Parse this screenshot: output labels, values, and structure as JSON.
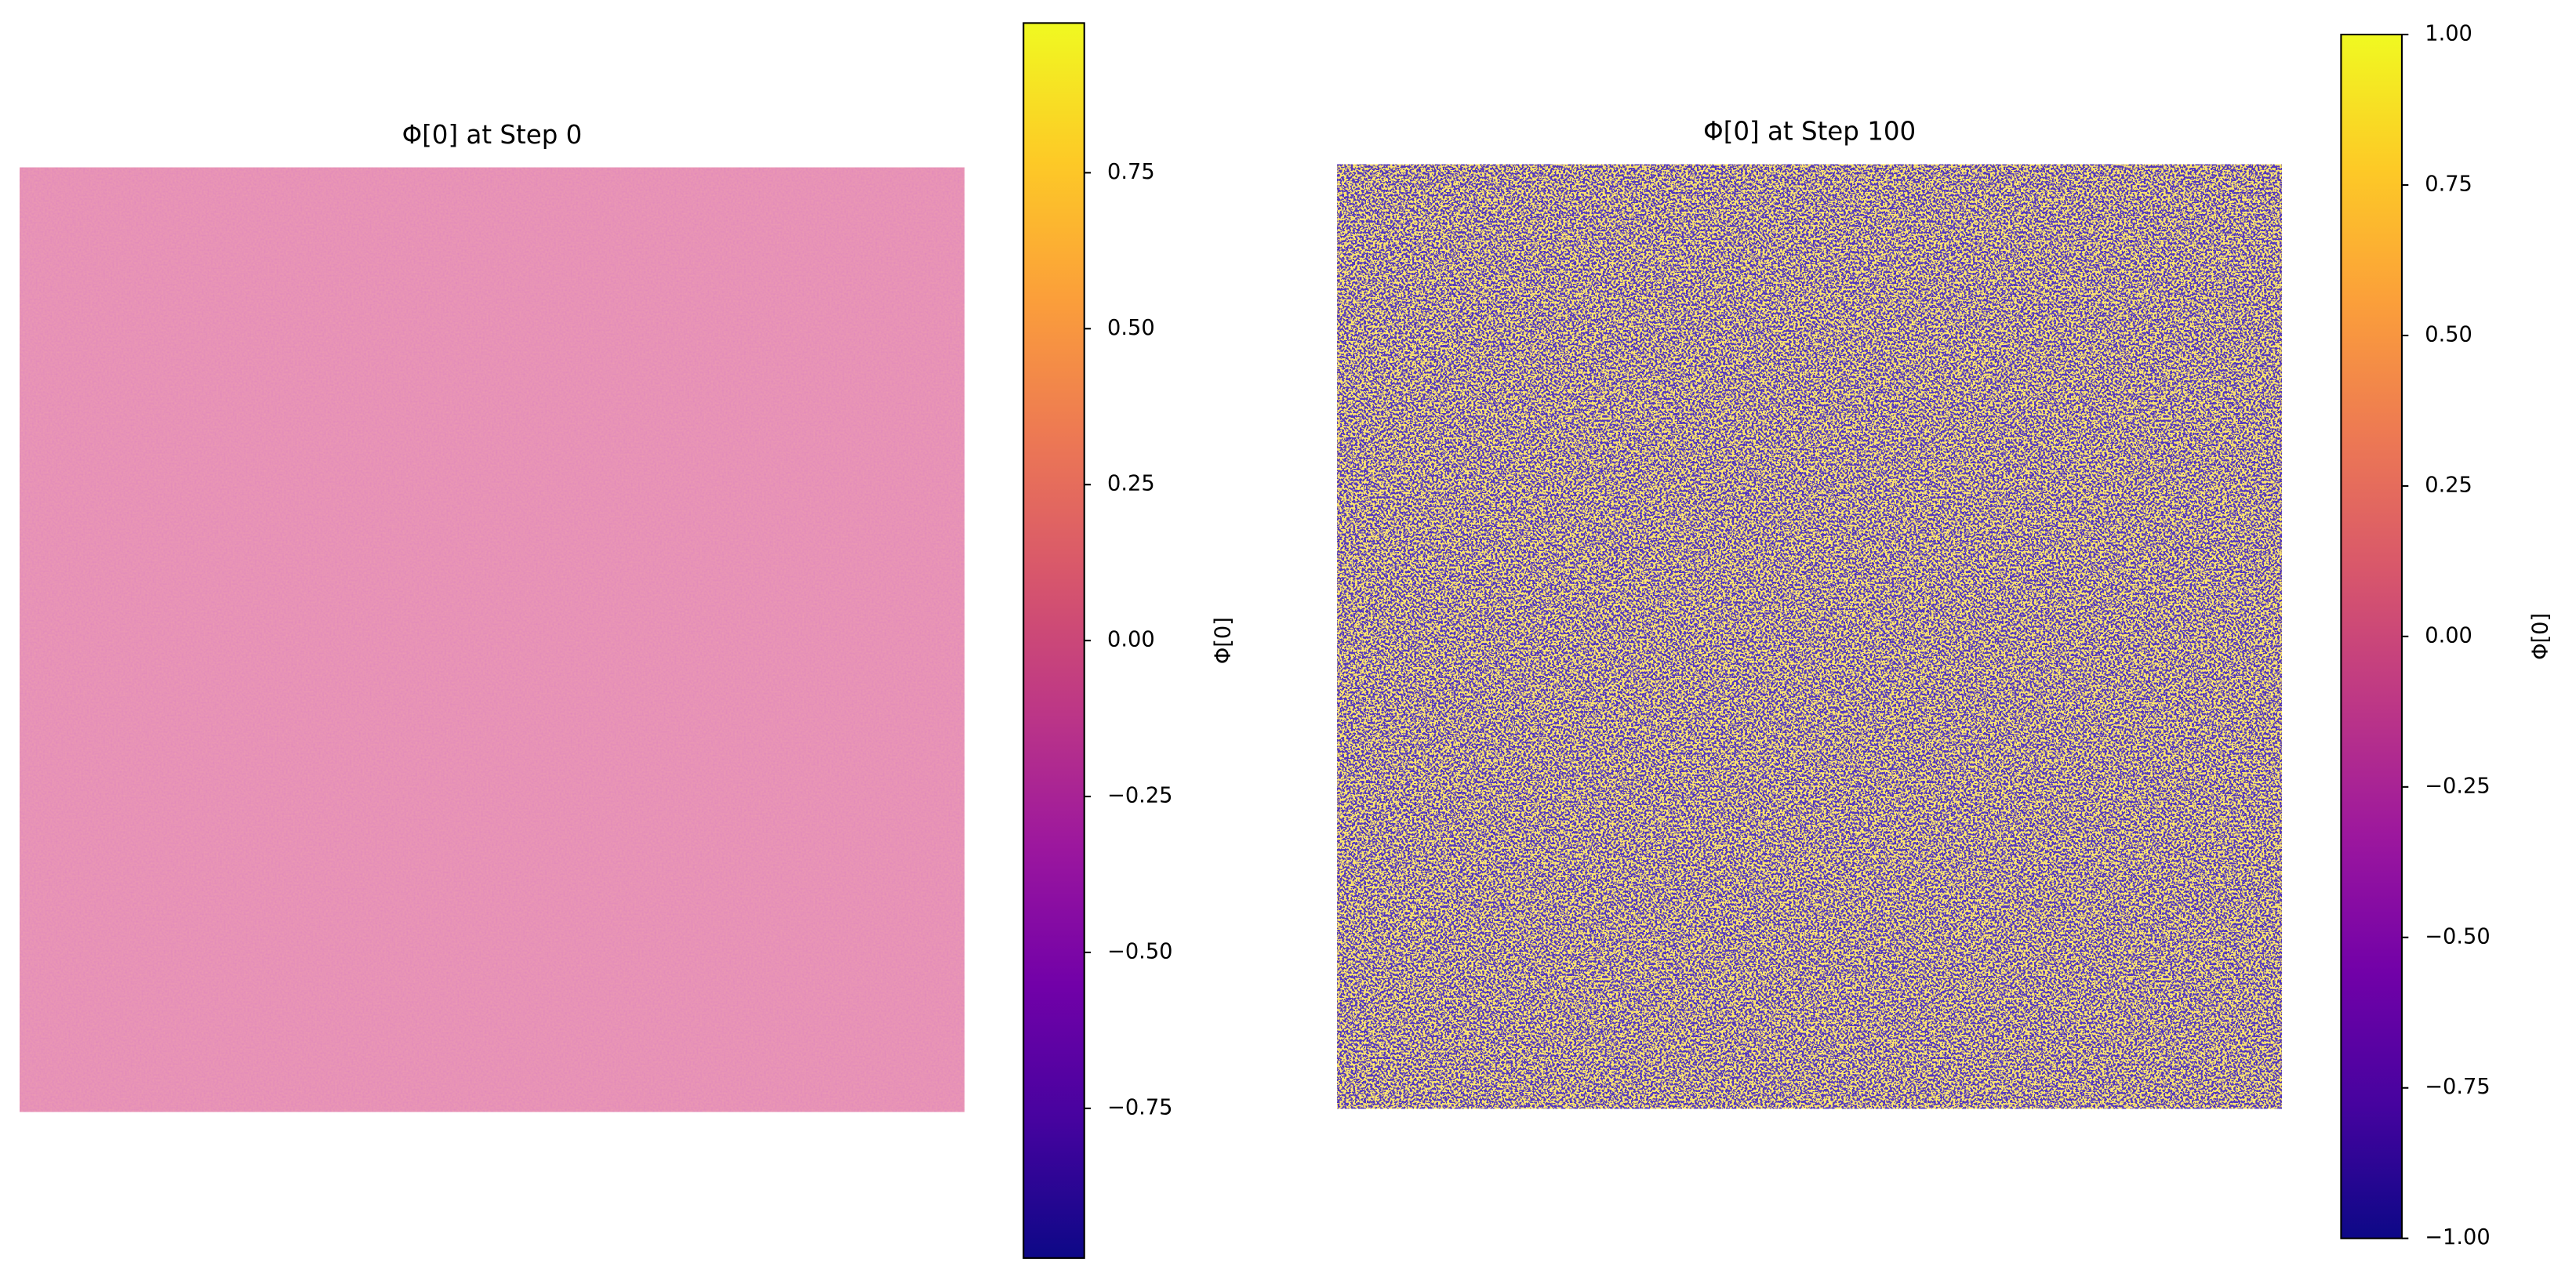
{
  "chart_data": [
    {
      "type": "heatmap",
      "title": "Φ[0] at Step 0",
      "colormap": "plasma",
      "colorbar_label": "Φ[0]",
      "clim": [
        -0.99,
        0.99
      ],
      "cticks": [
        {
          "value": -0.75,
          "label": "−0.75"
        },
        {
          "value": -0.5,
          "label": "−0.50"
        },
        {
          "value": -0.25,
          "label": "−0.25"
        },
        {
          "value": 0,
          "label": "0.00"
        },
        0.25,
        {
          "value": 0.5,
          "label": "0.50"
        },
        0.75
      ]
    },
    {
      "type": "heatmap",
      "title": "Φ[0] at Step 100",
      "colormap": "plasma",
      "colorbar_label": "Φ[0]",
      "clim": [
        -1,
        1
      ],
      "cticks": [
        {
          "value": -1,
          "label": "−1.00"
        },
        {
          "value": -0.75,
          "label": "−0.75"
        },
        {
          "value": -0.5,
          "label": "−0.50"
        },
        {
          "value": -0.25,
          "label": "−0.25"
        },
        {
          "value": 0,
          "label": "0.00"
        },
        0.25,
        {
          "value": 0.5,
          "label": "0.50"
        },
        0.75,
        {
          "value": 1,
          "label": "1.00"
        }
      ]
    }
  ]
}
